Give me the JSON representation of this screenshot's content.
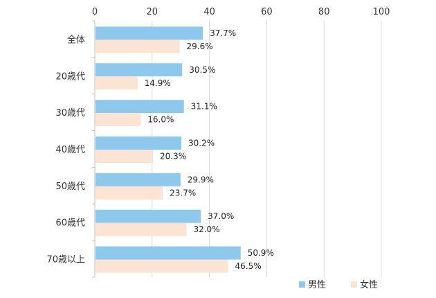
{
  "chart_data": {
    "type": "bar",
    "orientation": "horizontal",
    "title": "",
    "xlabel": "",
    "ylabel": "",
    "xlim": [
      0,
      100
    ],
    "xticks": [
      0,
      20,
      40,
      60,
      80,
      100
    ],
    "axis_position": "top",
    "grid": true,
    "legend_position": "bottom-right",
    "categories": [
      "全体",
      "20歳代",
      "30歳代",
      "40歳代",
      "50歳代",
      "60歳代",
      "70歳以上"
    ],
    "series": [
      {
        "name": "男性",
        "color": "#8ec8ec",
        "values": [
          37.7,
          30.5,
          31.1,
          30.2,
          29.9,
          37.0,
          50.9
        ],
        "labels": [
          "37.7%",
          "30.5%",
          "31.1%",
          "30.2%",
          "29.9%",
          "37.0%",
          "50.9%"
        ]
      },
      {
        "name": "女性",
        "color": "#fce4d4",
        "values": [
          29.6,
          14.9,
          16.0,
          20.3,
          23.7,
          32.0,
          46.5
        ],
        "labels": [
          "29.6%",
          "14.9%",
          "16.0%",
          "20.3%",
          "23.7%",
          "32.0%",
          "46.5%"
        ]
      }
    ]
  }
}
